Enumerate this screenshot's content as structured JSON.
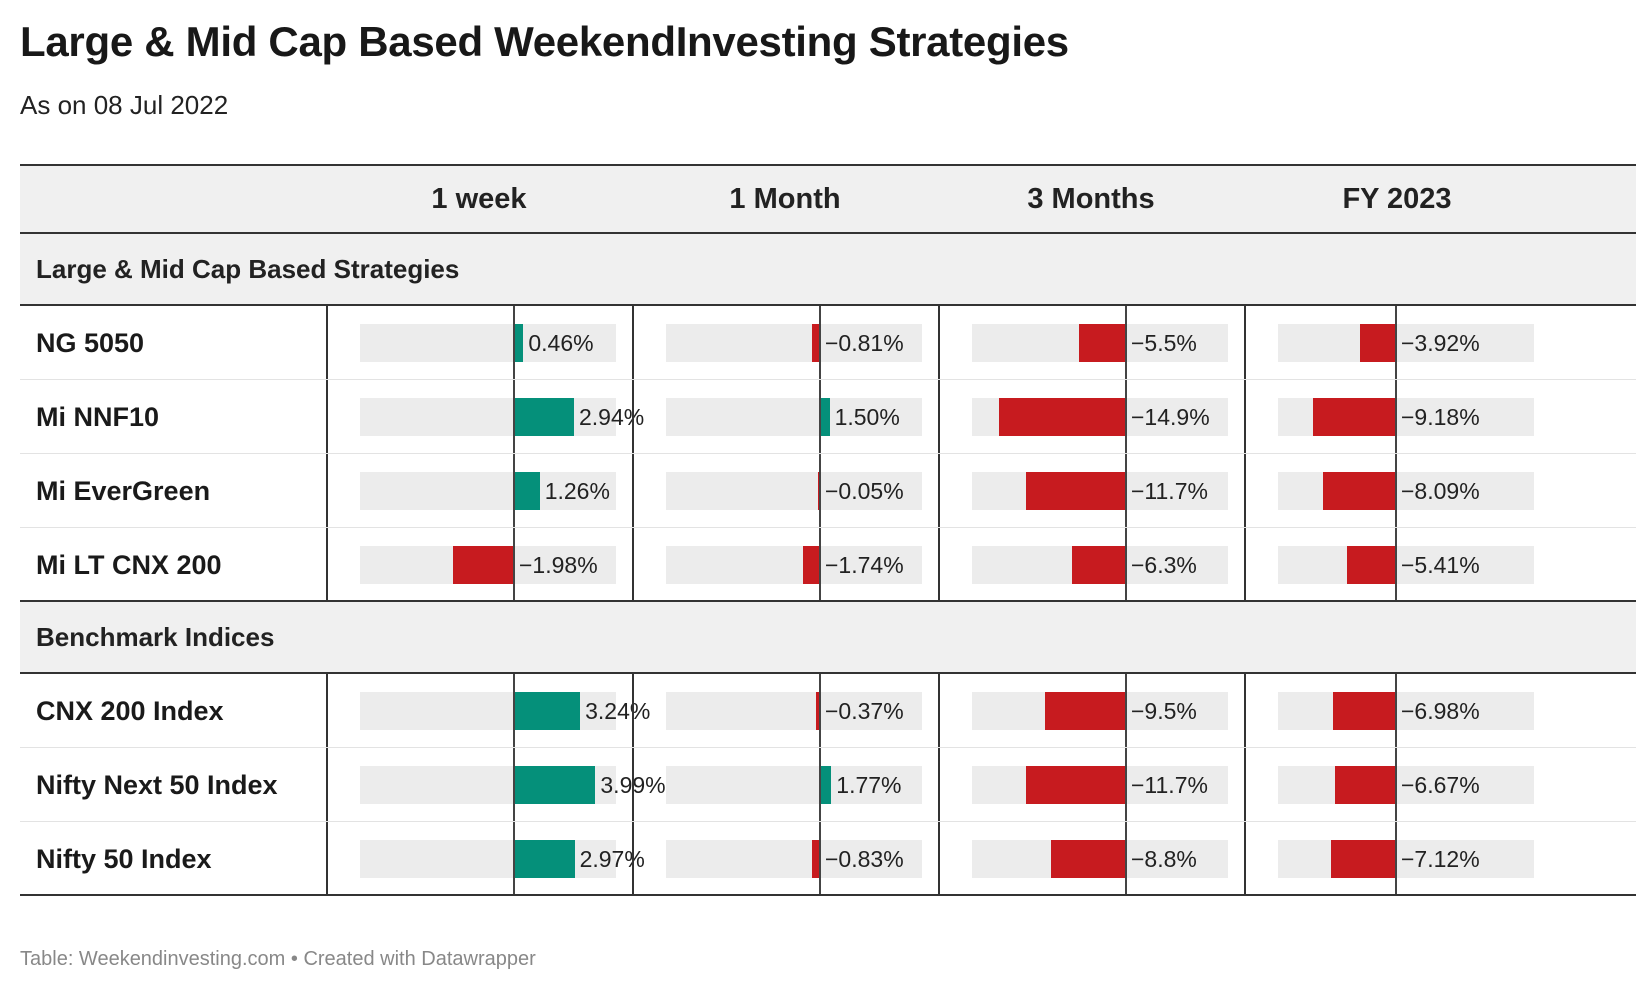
{
  "title": "Large & Mid Cap Based WeekendInvesting Strategies",
  "subtitle": "As on 08 Jul 2022",
  "footer": "Table: Weekendinvesting.com • Created with Datawrapper",
  "colors": {
    "positive": "#05907a",
    "negative": "#c71b1f",
    "track": "#ececec",
    "header_bg": "#f0f0f0"
  },
  "chart_data": {
    "type": "table",
    "columns": [
      "1 week",
      "1 Month",
      "3 Months",
      "FY 2023"
    ],
    "value_ranges": [
      [
        -5,
        5
      ],
      [
        -16,
        16
      ],
      [
        -18,
        18
      ],
      [
        -13,
        13
      ]
    ],
    "groups": [
      {
        "name": "Large & Mid Cap Based Strategies",
        "rows": [
          {
            "name": "NG 5050",
            "values": [
              0.46,
              -0.81,
              -5.5,
              -3.92
            ],
            "labels": [
              "0.46%",
              "−0.81%",
              "−5.5%",
              "−3.92%"
            ]
          },
          {
            "name": "Mi NNF10",
            "values": [
              2.94,
              1.5,
              -14.9,
              -9.18
            ],
            "labels": [
              "2.94%",
              "1.50%",
              "−14.9%",
              "−9.18%"
            ]
          },
          {
            "name": "Mi EverGreen",
            "values": [
              1.26,
              -0.05,
              -11.7,
              -8.09
            ],
            "labels": [
              "1.26%",
              "−0.05%",
              "−11.7%",
              "−8.09%"
            ]
          },
          {
            "name": "Mi LT CNX 200",
            "values": [
              -1.98,
              -1.74,
              -6.3,
              -5.41
            ],
            "labels": [
              "−1.98%",
              "−1.74%",
              "−6.3%",
              "−5.41%"
            ]
          }
        ]
      },
      {
        "name": "Benchmark Indices",
        "rows": [
          {
            "name": "CNX 200 Index",
            "values": [
              3.24,
              -0.37,
              -9.5,
              -6.98
            ],
            "labels": [
              "3.24%",
              "−0.37%",
              "−9.5%",
              "−6.98%"
            ]
          },
          {
            "name": "Nifty Next 50 Index",
            "values": [
              3.99,
              1.77,
              -11.7,
              -6.67
            ],
            "labels": [
              "3.99%",
              "1.77%",
              "−11.7%",
              "−6.67%"
            ]
          },
          {
            "name": "Nifty 50 Index",
            "values": [
              2.97,
              -0.83,
              -8.8,
              -7.12
            ],
            "labels": [
              "2.97%",
              "−0.83%",
              "−8.8%",
              "−7.12%"
            ]
          }
        ]
      }
    ]
  }
}
